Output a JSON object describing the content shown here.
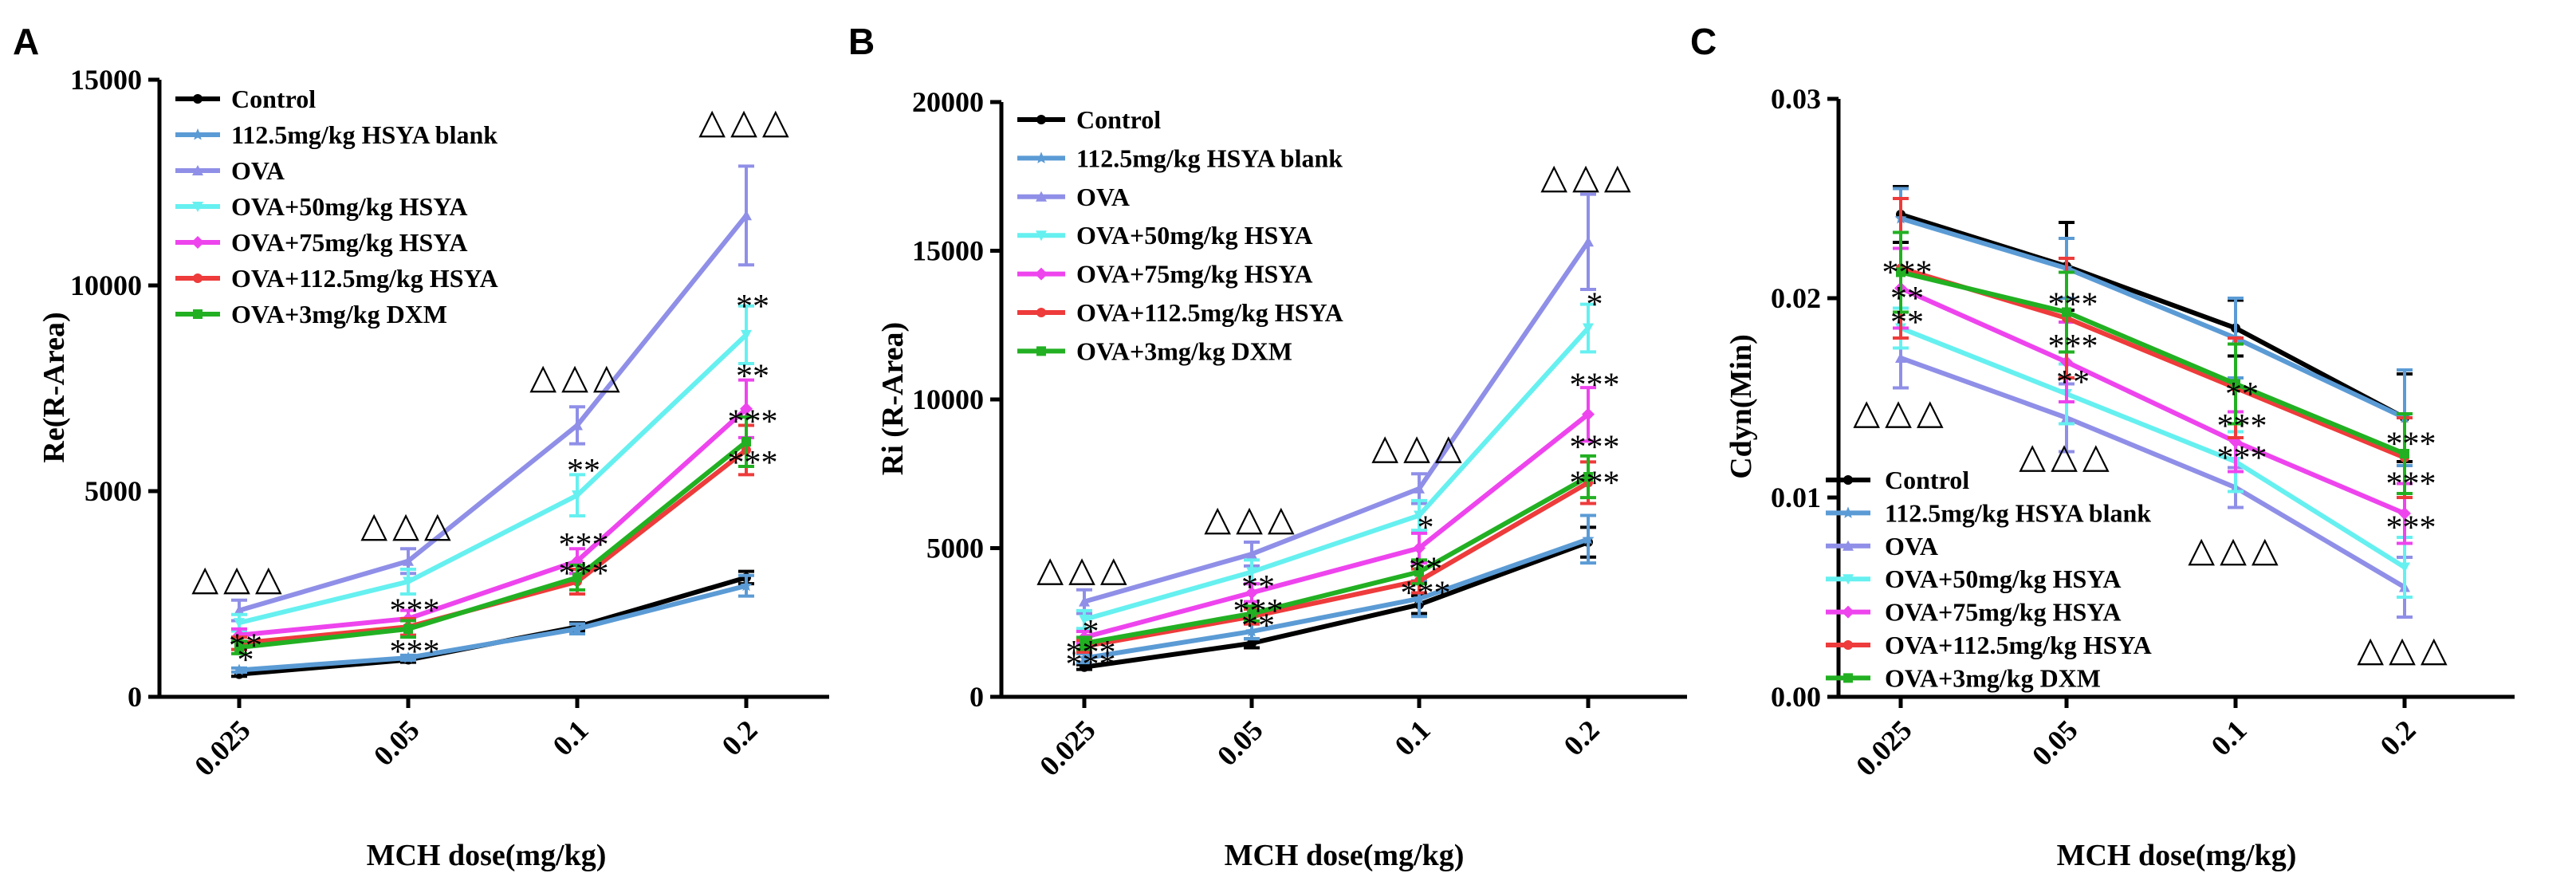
{
  "figure": {
    "shared_xlabel": "MCH dose(mg/kg)",
    "categories": [
      "0.025",
      "0.05",
      "0.1",
      "0.2"
    ],
    "series_styles": [
      {
        "name": "Control",
        "color": "#000000",
        "marker": "circle"
      },
      {
        "name": "112.5mg/kg HSYA blank",
        "color": "#5b9bd5",
        "marker": "star"
      },
      {
        "name": "OVA",
        "color": "#8f8fe8",
        "marker": "triangle"
      },
      {
        "name": "OVA+50mg/kg HSYA",
        "color": "#66f0f0",
        "marker": "triangle-down"
      },
      {
        "name": "OVA+75mg/kg HSYA",
        "color": "#ee44ee",
        "marker": "diamond"
      },
      {
        "name": "OVA+112.5mg/kg HSYA",
        "color": "#ee3b3b",
        "marker": "circle"
      },
      {
        "name": "OVA+3mg/kg DXM",
        "color": "#22b022",
        "marker": "square"
      }
    ]
  },
  "chart_data": [
    {
      "panel": "A",
      "type": "line",
      "title": "",
      "xlabel": "MCH dose(mg/kg)",
      "ylabel": "Re(R-Area)",
      "categories": [
        "0.025",
        "0.05",
        "0.1",
        "0.2"
      ],
      "ylim": [
        0,
        15000
      ],
      "yticks": [
        0,
        5000,
        10000,
        15000
      ],
      "ytick_labels": [
        "0",
        "5000",
        "10000",
        "15000"
      ],
      "legend_position": "top-left",
      "series": [
        {
          "name": "Control",
          "values": [
            550,
            900,
            1700,
            2900
          ],
          "errors": [
            50,
            60,
            100,
            150
          ]
        },
        {
          "name": "112.5mg/kg HSYA blank",
          "values": [
            650,
            950,
            1650,
            2700
          ],
          "errors": [
            50,
            60,
            120,
            250
          ]
        },
        {
          "name": "OVA",
          "values": [
            2100,
            3300,
            6600,
            11700
          ],
          "errors": [
            250,
            300,
            450,
            1200
          ]
        },
        {
          "name": "OVA+50mg/kg HSYA",
          "values": [
            1800,
            2800,
            4900,
            8800
          ],
          "errors": [
            200,
            300,
            500,
            700
          ]
        },
        {
          "name": "OVA+75mg/kg HSYA",
          "values": [
            1500,
            1900,
            3300,
            7000
          ],
          "errors": [
            150,
            200,
            300,
            700
          ]
        },
        {
          "name": "OVA+112.5mg/kg HSYA",
          "values": [
            1300,
            1700,
            2800,
            6000
          ],
          "errors": [
            150,
            200,
            300,
            600
          ]
        },
        {
          "name": "OVA+3mg/kg DXM",
          "values": [
            1200,
            1650,
            2900,
            6200
          ],
          "errors": [
            150,
            200,
            300,
            600
          ]
        }
      ],
      "annotations": [
        {
          "text": "△△△",
          "x": "0.025",
          "y": 2600,
          "kind": "triangles"
        },
        {
          "text": "△△△",
          "x": "0.05",
          "y": 3900,
          "kind": "triangles"
        },
        {
          "text": "△△△",
          "x": "0.1",
          "y": 7500,
          "kind": "triangles"
        },
        {
          "text": "△△△",
          "x": "0.2",
          "y": 13700,
          "kind": "triangles"
        },
        {
          "text": "**",
          "x": "0.025",
          "y": 1250,
          "kind": "stars"
        },
        {
          "text": "*",
          "x": "0.025",
          "y": 900,
          "kind": "stars"
        },
        {
          "text": "***",
          "x": "0.05",
          "y": 2100,
          "kind": "stars"
        },
        {
          "text": "***",
          "x": "0.05",
          "y": 1100,
          "kind": "stars"
        },
        {
          "text": "***",
          "x": "0.1",
          "y": 3700,
          "kind": "stars"
        },
        {
          "text": "***",
          "x": "0.1",
          "y": 3000,
          "kind": "stars"
        },
        {
          "text": "**",
          "x": "0.1",
          "y": 5500,
          "kind": "stars"
        },
        {
          "text": "**",
          "x": "0.2",
          "y": 9500,
          "kind": "stars"
        },
        {
          "text": "**",
          "x": "0.2",
          "y": 7800,
          "kind": "stars"
        },
        {
          "text": "***",
          "x": "0.2",
          "y": 6700,
          "kind": "stars"
        },
        {
          "text": "***",
          "x": "0.2",
          "y": 5700,
          "kind": "stars"
        }
      ]
    },
    {
      "panel": "B",
      "type": "line",
      "title": "",
      "xlabel": "MCH dose(mg/kg)",
      "ylabel": "Ri (R-Area)",
      "categories": [
        "0.025",
        "0.05",
        "0.1",
        "0.2"
      ],
      "ylim": [
        0,
        20000
      ],
      "yticks": [
        0,
        5000,
        10000,
        15000,
        20000
      ],
      "ytick_labels": [
        "0",
        "5000",
        "10000",
        "15000",
        "20000"
      ],
      "legend_position": "top-left",
      "series": [
        {
          "name": "Control",
          "values": [
            1000,
            1800,
            3100,
            5200
          ],
          "errors": [
            80,
            150,
            300,
            500
          ]
        },
        {
          "name": "112.5mg/kg HSYA blank",
          "values": [
            1300,
            2200,
            3300,
            5300
          ],
          "errors": [
            150,
            250,
            600,
            800
          ]
        },
        {
          "name": "OVA",
          "values": [
            3200,
            4800,
            7000,
            15300
          ],
          "errors": [
            400,
            400,
            500,
            1600
          ]
        },
        {
          "name": "OVA+50mg/kg HSYA",
          "values": [
            2600,
            4200,
            6100,
            12400
          ],
          "errors": [
            300,
            400,
            500,
            800
          ]
        },
        {
          "name": "OVA+75mg/kg HSYA",
          "values": [
            2000,
            3500,
            5000,
            9500
          ],
          "errors": [
            200,
            300,
            500,
            900
          ]
        },
        {
          "name": "OVA+112.5mg/kg HSYA",
          "values": [
            1700,
            2700,
            3900,
            7200
          ],
          "errors": [
            200,
            250,
            400,
            700
          ]
        },
        {
          "name": "OVA+3mg/kg DXM",
          "values": [
            1800,
            2800,
            4200,
            7400
          ],
          "errors": [
            200,
            250,
            400,
            700
          ]
        }
      ],
      "annotations": [
        {
          "text": "△△△",
          "x": "0.025",
          "y": 3900,
          "kind": "triangles"
        },
        {
          "text": "△△△",
          "x": "0.05",
          "y": 5600,
          "kind": "triangles"
        },
        {
          "text": "△△△",
          "x": "0.1",
          "y": 8000,
          "kind": "triangles"
        },
        {
          "text": "△△△",
          "x": "0.2",
          "y": 17100,
          "kind": "triangles"
        },
        {
          "text": "*",
          "x": "0.025",
          "y": 2200,
          "kind": "stars"
        },
        {
          "text": "***",
          "x": "0.025",
          "y": 1500,
          "kind": "stars"
        },
        {
          "text": "***",
          "x": "0.025",
          "y": 1100,
          "kind": "stars"
        },
        {
          "text": "**",
          "x": "0.05",
          "y": 3700,
          "kind": "stars"
        },
        {
          "text": "***",
          "x": "0.05",
          "y": 2900,
          "kind": "stars"
        },
        {
          "text": "**",
          "x": "0.05",
          "y": 2400,
          "kind": "stars"
        },
        {
          "text": "*",
          "x": "0.1",
          "y": 5700,
          "kind": "stars"
        },
        {
          "text": "**",
          "x": "0.1",
          "y": 4300,
          "kind": "stars"
        },
        {
          "text": "***",
          "x": "0.1",
          "y": 3500,
          "kind": "stars"
        },
        {
          "text": "*",
          "x": "0.2",
          "y": 13200,
          "kind": "stars"
        },
        {
          "text": "***",
          "x": "0.2",
          "y": 10500,
          "kind": "stars"
        },
        {
          "text": "***",
          "x": "0.2",
          "y": 8400,
          "kind": "stars"
        },
        {
          "text": "***",
          "x": "0.2",
          "y": 7200,
          "kind": "stars"
        }
      ]
    },
    {
      "panel": "C",
      "type": "line",
      "title": "",
      "xlabel": "MCH dose(mg/kg)",
      "ylabel": "Cdyn(Min)",
      "categories": [
        "0.025",
        "0.05",
        "0.1",
        "0.2"
      ],
      "ylim": [
        0,
        0.03
      ],
      "yticks": [
        0,
        0.01,
        0.02,
        0.03
      ],
      "ytick_labels": [
        "0.00",
        "0.01",
        "0.02",
        "0.03"
      ],
      "legend_position": "bottom-left",
      "series": [
        {
          "name": "Control",
          "values": [
            0.0242,
            0.0216,
            0.0185,
            0.014
          ],
          "errors": [
            0.0014,
            0.0022,
            0.0014,
            0.0022
          ]
        },
        {
          "name": "112.5mg/kg HSYA blank",
          "values": [
            0.024,
            0.0215,
            0.018,
            0.014
          ],
          "errors": [
            0.0015,
            0.0015,
            0.002,
            0.0024
          ]
        },
        {
          "name": "OVA",
          "values": [
            0.017,
            0.014,
            0.0105,
            0.0055
          ],
          "errors": [
            0.0015,
            0.0017,
            0.001,
            0.0015
          ]
        },
        {
          "name": "OVA+50mg/kg HSYA",
          "values": [
            0.0185,
            0.0152,
            0.0118,
            0.0065
          ],
          "errors": [
            0.001,
            0.0015,
            0.0015,
            0.0015
          ]
        },
        {
          "name": "OVA+75mg/kg HSYA",
          "values": [
            0.0205,
            0.0168,
            0.0128,
            0.0092
          ],
          "errors": [
            0.002,
            0.002,
            0.0015,
            0.0015
          ]
        },
        {
          "name": "OVA+112.5mg/kg HSYA",
          "values": [
            0.0215,
            0.019,
            0.0155,
            0.012
          ],
          "errors": [
            0.0035,
            0.003,
            0.0025,
            0.002
          ]
        },
        {
          "name": "OVA+3mg/kg DXM",
          "values": [
            0.0213,
            0.0193,
            0.0157,
            0.0122
          ],
          "errors": [
            0.002,
            0.002,
            0.002,
            0.002
          ]
        }
      ],
      "annotations": [
        {
          "text": "△△△",
          "x": "0.025",
          "y": 0.0137,
          "kind": "triangles"
        },
        {
          "text": "△△△",
          "x": "0.05",
          "y": 0.0115,
          "kind": "triangles"
        },
        {
          "text": "△△△",
          "x": "0.1",
          "y": 0.0068,
          "kind": "triangles"
        },
        {
          "text": "△△△",
          "x": "0.2",
          "y": 0.0018,
          "kind": "triangles"
        },
        {
          "text": "***",
          "x": "0.025",
          "y": 0.0213,
          "kind": "stars"
        },
        {
          "text": "**",
          "x": "0.025",
          "y": 0.02,
          "kind": "stars"
        },
        {
          "text": "**",
          "x": "0.025",
          "y": 0.0188,
          "kind": "stars"
        },
        {
          "text": "***",
          "x": "0.05",
          "y": 0.0197,
          "kind": "stars"
        },
        {
          "text": "***",
          "x": "0.05",
          "y": 0.0176,
          "kind": "stars"
        },
        {
          "text": "**",
          "x": "0.05",
          "y": 0.0158,
          "kind": "stars"
        },
        {
          "text": "**",
          "x": "0.1",
          "y": 0.0152,
          "kind": "stars"
        },
        {
          "text": "***",
          "x": "0.1",
          "y": 0.0136,
          "kind": "stars"
        },
        {
          "text": "***",
          "x": "0.1",
          "y": 0.012,
          "kind": "stars"
        },
        {
          "text": "***",
          "x": "0.2",
          "y": 0.0127,
          "kind": "stars"
        },
        {
          "text": "***",
          "x": "0.2",
          "y": 0.0107,
          "kind": "stars"
        },
        {
          "text": "***",
          "x": "0.2",
          "y": 0.0085,
          "kind": "stars"
        }
      ]
    }
  ]
}
